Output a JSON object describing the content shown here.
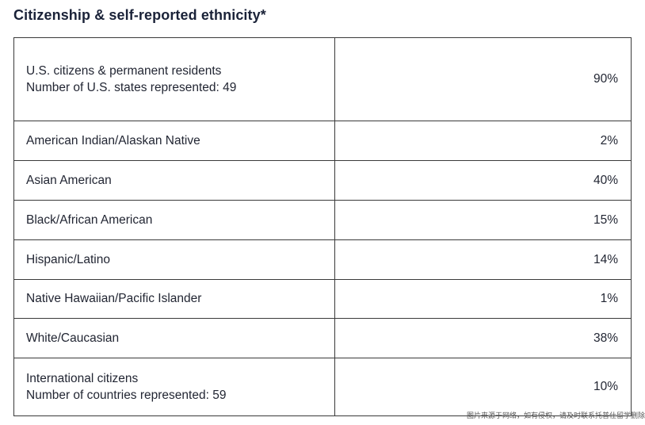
{
  "title": "Citizenship & self-reported ethnicity*",
  "rows": [
    {
      "label": "U.S. citizens & permanent residents",
      "sublabel": "Number of U.S. states represented: 49",
      "value": "90%"
    },
    {
      "label": "American Indian/Alaskan Native",
      "value": "2%"
    },
    {
      "label": "Asian American",
      "value": "40%"
    },
    {
      "label": "Black/African American",
      "value": "15%"
    },
    {
      "label": "Hispanic/Latino",
      "value": "14%"
    },
    {
      "label": "Native Hawaiian/Pacific Islander",
      "value": "1%"
    },
    {
      "label": "White/Caucasian",
      "value": "38%"
    },
    {
      "label": "International citizens",
      "sublabel": "Number of countries represented: 59",
      "value": "10%"
    }
  ],
  "watermark": "图片来源于网络，如有侵权，请及时联系托普仕留学删除"
}
